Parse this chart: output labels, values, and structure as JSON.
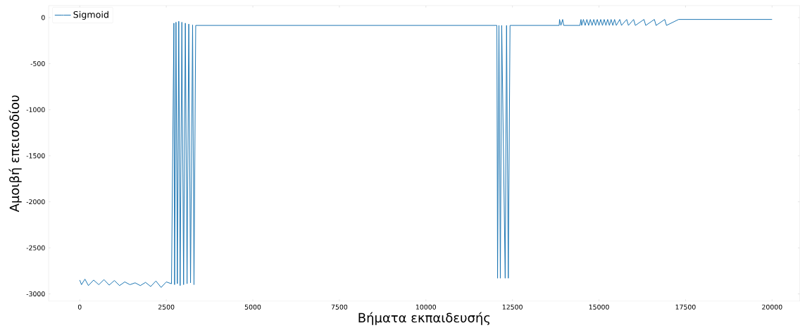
{
  "chart_data": {
    "type": "line",
    "xlabel": "Βήματα εκπαιδευσής",
    "ylabel": "Αμοιβή επεισοδίου",
    "x": [
      0,
      50,
      150,
      250,
      400,
      550,
      700,
      850,
      1000,
      1150,
      1300,
      1450,
      1600,
      1750,
      1900,
      2050,
      2200,
      2350,
      2500,
      2650,
      2720,
      2740,
      2780,
      2820,
      2860,
      2900,
      2950,
      3000,
      3050,
      3100,
      3150,
      3200,
      3260,
      3300,
      3350,
      12050,
      12070,
      12110,
      12150,
      12190,
      12290,
      12330,
      12380,
      12430,
      13850,
      13860,
      13900,
      13950,
      13980,
      14450,
      14480,
      14500,
      14550,
      14600,
      14650,
      14700,
      14750,
      14800,
      14850,
      14900,
      14950,
      15000,
      15050,
      15100,
      15150,
      15200,
      15250,
      15300,
      15350,
      15400,
      15450,
      15500,
      15600,
      15650,
      15800,
      15850,
      16000,
      16050,
      16300,
      16350,
      16600,
      16650,
      16900,
      16950,
      17300,
      17320,
      20000
    ],
    "series": [
      {
        "name": "Sigmoid",
        "color": "#1f77b4",
        "values": [
          -2850,
          -2900,
          -2840,
          -2910,
          -2850,
          -2900,
          -2845,
          -2905,
          -2855,
          -2910,
          -2870,
          -2900,
          -2880,
          -2910,
          -2875,
          -2920,
          -2860,
          -2930,
          -2870,
          -2890,
          -60,
          -2900,
          -50,
          -2890,
          -40,
          -2910,
          -50,
          -2900,
          -60,
          -2890,
          -70,
          -2880,
          -80,
          -2900,
          -85,
          -85,
          -2830,
          -85,
          -2830,
          -85,
          -2830,
          -85,
          -2830,
          -85,
          -85,
          -20,
          -85,
          -20,
          -85,
          -85,
          -20,
          -85,
          -20,
          -85,
          -20,
          -85,
          -20,
          -85,
          -20,
          -85,
          -20,
          -85,
          -20,
          -85,
          -20,
          -85,
          -20,
          -85,
          -20,
          -85,
          -20,
          -85,
          -20,
          -85,
          -20,
          -85,
          -20,
          -85,
          -20,
          -85,
          -20,
          -85,
          -20,
          -85,
          -20,
          -20,
          -20
        ]
      }
    ],
    "xlim": [
      -900,
      20800
    ],
    "ylim": [
      -3080,
      130
    ],
    "xticks": [
      0,
      2500,
      5000,
      7500,
      10000,
      12500,
      15000,
      17500,
      20000
    ],
    "yticks": [
      -3000,
      -2500,
      -2000,
      -1500,
      -1000,
      -500,
      0
    ],
    "legend": "top left"
  }
}
